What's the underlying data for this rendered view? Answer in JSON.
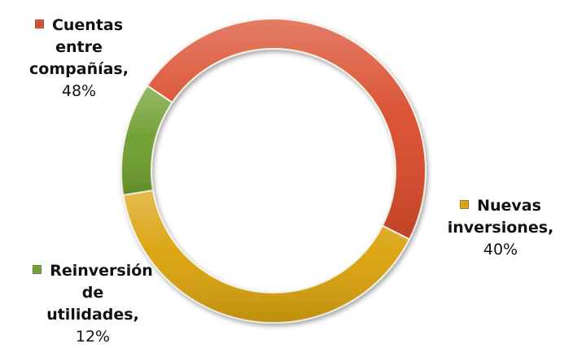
{
  "chart_data": {
    "type": "donut",
    "title": "",
    "legend": "none",
    "slices": [
      {
        "name": "Cuentas entre compañías",
        "value": 48,
        "label_lines": [
          "Cuentas",
          "entre",
          "compañías,"
        ],
        "percent_label": "48%",
        "color": "#d94a2a"
      },
      {
        "name": "Nuevas inversiones",
        "value": 40,
        "label_lines": [
          "Nuevas",
          "inversiones,"
        ],
        "percent_label": "40%",
        "color": "#d9a20c"
      },
      {
        "name": "Reinversión de utilidades",
        "value": 12,
        "label_lines": [
          "Reinversión",
          "de",
          "utilidades,"
        ],
        "percent_label": "12%",
        "color": "#6e9e2e"
      }
    ]
  }
}
